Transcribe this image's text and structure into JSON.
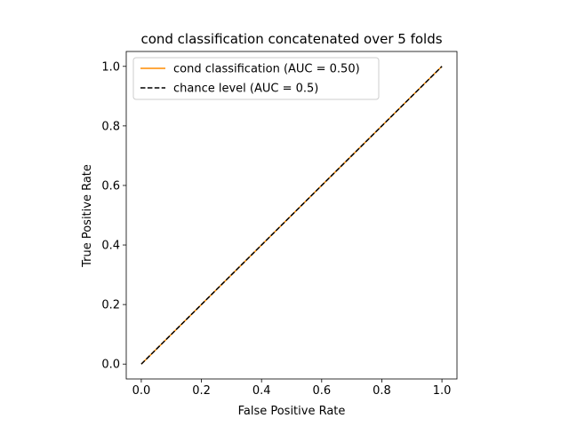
{
  "chart_data": {
    "type": "line",
    "title": "cond classification concatenated over 5 folds",
    "xlabel": "False Positive Rate",
    "ylabel": "True Positive Rate",
    "xlim": [
      -0.05,
      1.05
    ],
    "ylim": [
      -0.05,
      1.05
    ],
    "xticks": [
      0.0,
      0.2,
      0.4,
      0.6,
      0.8,
      1.0
    ],
    "yticks": [
      0.0,
      0.2,
      0.4,
      0.6,
      0.8,
      1.0
    ],
    "xtick_labels": [
      "0.0",
      "0.2",
      "0.4",
      "0.6",
      "0.8",
      "1.0"
    ],
    "ytick_labels": [
      "0.0",
      "0.2",
      "0.4",
      "0.6",
      "0.8",
      "1.0"
    ],
    "grid": false,
    "legend_position": "top-left",
    "series": [
      {
        "name": "cond classification (AUC = 0.50)",
        "x": [
          0.0,
          1.0
        ],
        "y": [
          0.0,
          1.0
        ],
        "color": "#ff8c00",
        "style": "solid"
      },
      {
        "name": "chance level (AUC = 0.5)",
        "x": [
          0.0,
          1.0
        ],
        "y": [
          0.0,
          1.0
        ],
        "color": "#000000",
        "style": "dashed"
      }
    ]
  }
}
